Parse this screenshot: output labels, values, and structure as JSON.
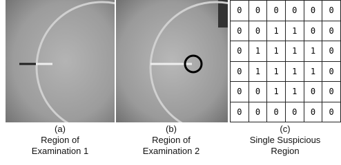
{
  "panels": [
    {
      "label": "(a)",
      "caption": [
        "Region of",
        "Examination 1"
      ]
    },
    {
      "label": "(b)",
      "caption": [
        "Region of",
        "Examination 2"
      ]
    },
    {
      "label": "(c)",
      "caption": [
        "Single Suspicious",
        "Region"
      ]
    }
  ],
  "grid": {
    "rows": [
      [
        0,
        0,
        0,
        0,
        0,
        0
      ],
      [
        0,
        0,
        1,
        1,
        0,
        0
      ],
      [
        0,
        1,
        1,
        1,
        1,
        0
      ],
      [
        0,
        1,
        1,
        1,
        1,
        0
      ],
      [
        0,
        0,
        1,
        1,
        0,
        0
      ],
      [
        0,
        0,
        0,
        0,
        0,
        0
      ]
    ]
  }
}
